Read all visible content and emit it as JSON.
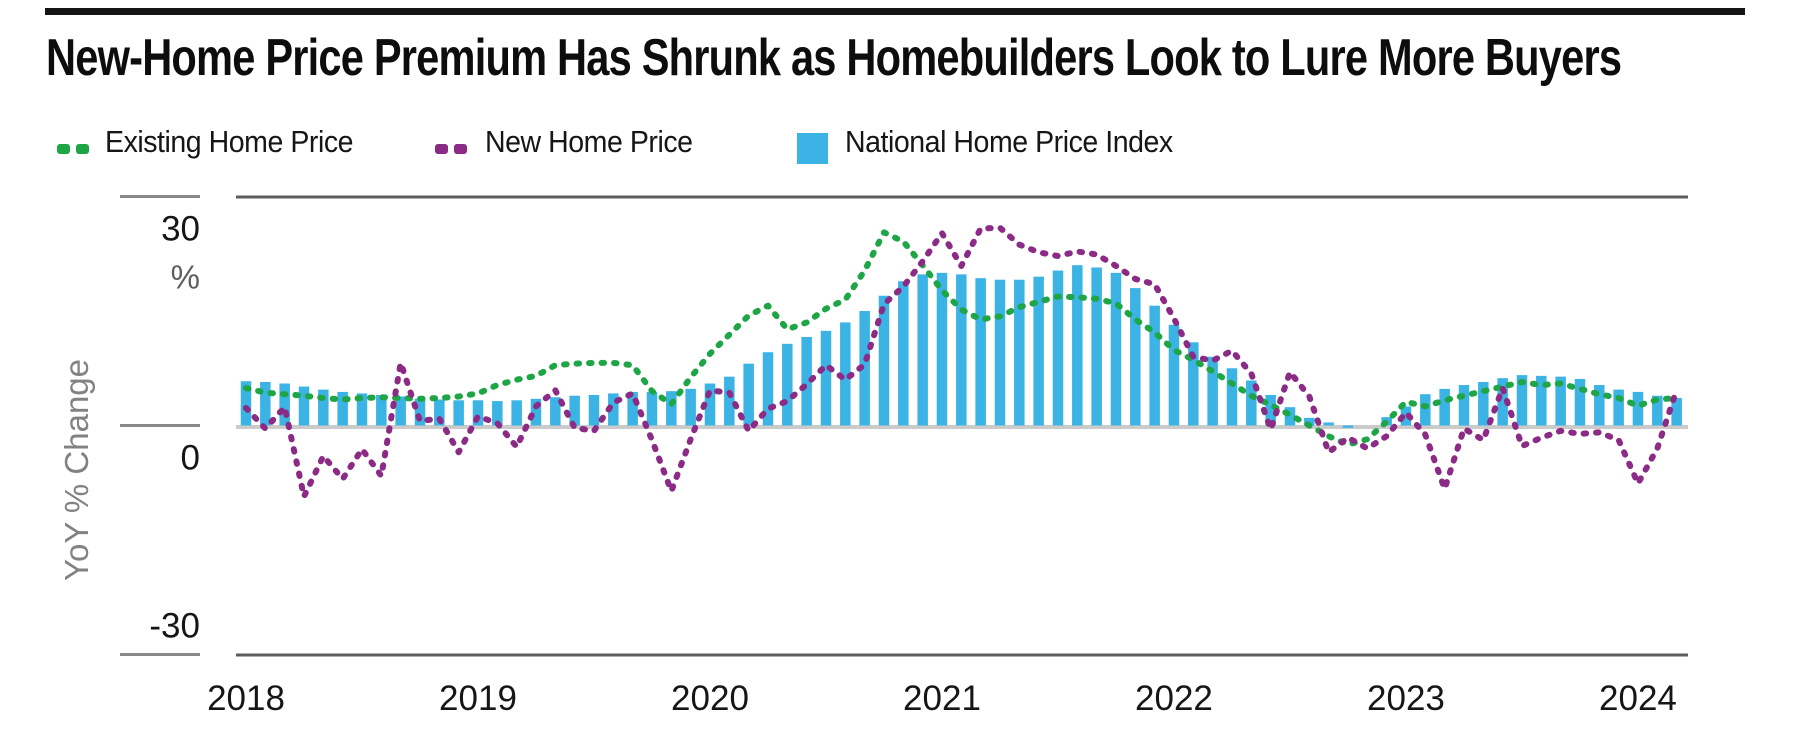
{
  "header": {
    "title": "New-Home Price Premium Has Shrunk as Homebuilders Look to Lure More Buyers"
  },
  "legend": {
    "items": [
      {
        "label": "Existing Home Price",
        "marker": "dashed-line-swatch",
        "color": "#1EA646"
      },
      {
        "label": "New Home Price",
        "marker": "dashed-line-swatch",
        "color": "#8C2B86"
      },
      {
        "label": "National Home Price Index",
        "marker": "square-swatch",
        "color": "#3CB3E5"
      }
    ]
  },
  "axes": {
    "y_label": "YoY % Change",
    "y_unit": "%",
    "y_ticks": [
      {
        "label": "30",
        "value": 30,
        "side": "below"
      },
      {
        "label": "0",
        "value": 0,
        "side": "below"
      },
      {
        "label": "-30",
        "value": -30,
        "side": "above"
      }
    ],
    "x_ticks": [
      "2018",
      "2019",
      "2020",
      "2021",
      "2022",
      "2023",
      "2024"
    ]
  },
  "chart_data": {
    "type": "bar+line",
    "freq": "monthly",
    "x_start": "2018-01",
    "x_end": "2024-03",
    "ylim": [
      -30,
      30
    ],
    "grid": false,
    "legend_position": "top",
    "series": [
      {
        "name": "National Home Price Index",
        "type": "bar",
        "color": "#3CB3E5",
        "values": [
          5.8,
          5.7,
          5.5,
          5.1,
          4.7,
          4.4,
          4.2,
          4.0,
          3.8,
          3.5,
          3.4,
          3.3,
          3.3,
          3.2,
          3.3,
          3.5,
          3.7,
          3.9,
          4.0,
          4.2,
          4.4,
          4.4,
          4.5,
          4.8,
          5.5,
          6.4,
          8.1,
          9.6,
          10.7,
          11.6,
          12.4,
          13.5,
          15.0,
          17.0,
          18.9,
          19.8,
          20.0,
          19.8,
          19.3,
          19.1,
          19.1,
          19.5,
          20.3,
          21.0,
          20.7,
          20.0,
          18.0,
          15.7,
          13.2,
          10.9,
          9.0,
          7.5,
          5.9,
          4.0,
          2.4,
          1.0,
          0.4,
          -0.3,
          0.0,
          1.1,
          2.5,
          4.1,
          4.8,
          5.3,
          5.7,
          6.2,
          6.6,
          6.5,
          6.4,
          6.1,
          5.3,
          4.7,
          4.4,
          3.9,
          3.6
        ]
      },
      {
        "name": "Existing Home Price",
        "type": "dotted-line",
        "color": "#1EA646",
        "values": [
          4.9,
          4.3,
          4.1,
          3.9,
          3.6,
          3.4,
          3.6,
          3.7,
          3.6,
          3.5,
          3.6,
          3.8,
          4.2,
          5.3,
          6.0,
          6.5,
          7.9,
          8.1,
          8.2,
          8.2,
          7.9,
          4.5,
          2.8,
          6.3,
          9.4,
          11.9,
          14.4,
          15.7,
          12.6,
          13.5,
          15.3,
          16.5,
          20.3,
          25.3,
          24.1,
          21.0,
          17.7,
          15.2,
          13.9,
          14.3,
          15.5,
          16.2,
          16.9,
          16.8,
          16.6,
          16.0,
          13.9,
          12.2,
          9.9,
          8.6,
          7.1,
          5.5,
          3.9,
          2.7,
          1.4,
          0.0,
          -1.4,
          -2.5,
          -1.8,
          0.5,
          3.1,
          2.5,
          3.3,
          3.9,
          4.5,
          5.1,
          5.7,
          5.3,
          5.5,
          4.8,
          4.1,
          3.6,
          2.6,
          3.4,
          3.6
        ]
      },
      {
        "name": "New Home Price",
        "type": "dotted-line",
        "color": "#8C2B86",
        "values": [
          2.3,
          -0.4,
          2.4,
          -9.3,
          -4.0,
          -7.0,
          -3.1,
          -6.6,
          8.2,
          0.6,
          0.9,
          -3.5,
          1.2,
          0.3,
          -2.8,
          2.5,
          4.6,
          -0.3,
          -0.7,
          3.0,
          4.2,
          -1.9,
          -8.6,
          -1.8,
          4.6,
          4.3,
          -0.7,
          2.2,
          3.2,
          5.4,
          7.9,
          6.0,
          8.0,
          15.9,
          18.2,
          21.5,
          25.2,
          20.9,
          25.8,
          25.9,
          23.7,
          22.7,
          22.2,
          22.8,
          22.4,
          20.9,
          19.2,
          18.5,
          14.0,
          9.0,
          8.5,
          9.8,
          6.8,
          -0.5,
          7.0,
          3.8,
          -3.5,
          -1.6,
          -3.0,
          -1.4,
          1.7,
          -1.2,
          -8.3,
          -0.4,
          -1.9,
          4.9,
          -2.7,
          -1.6,
          -0.7,
          -1.1,
          -0.9,
          -1.9,
          -7.6,
          -3.0,
          4.7
        ]
      }
    ]
  }
}
